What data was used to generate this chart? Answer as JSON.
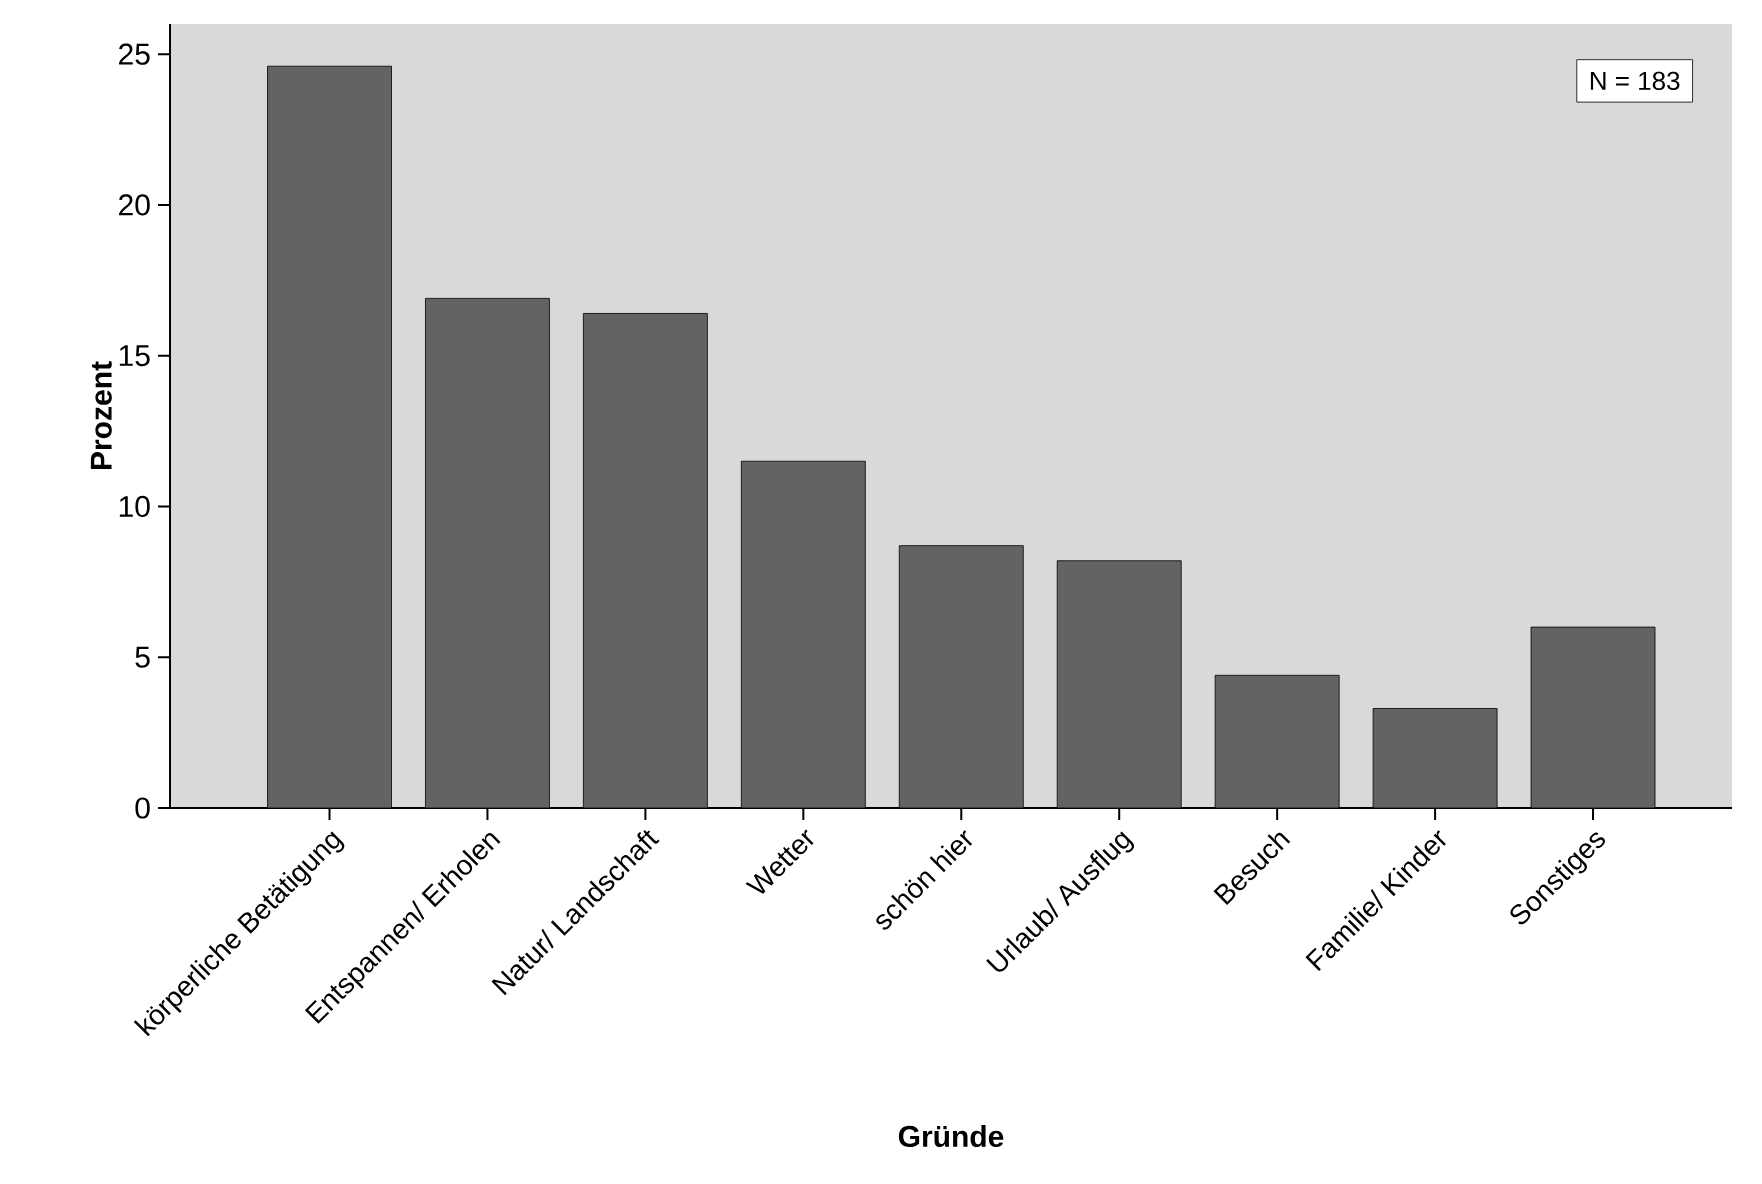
{
  "chart_data": {
    "type": "bar",
    "xlabel": "Gründe",
    "ylabel": "Prozent",
    "categories": [
      "körperliche Betätigung",
      "Entspannen/ Erholen",
      "Natur/ Landschaft",
      "Wetter",
      "schön hier",
      "Urlaub/ Ausflug",
      "Besuch",
      "Familie/ Kinder",
      "Sonstiges"
    ],
    "values": [
      24.6,
      16.9,
      16.4,
      11.5,
      8.7,
      8.2,
      4.4,
      3.3,
      6.0
    ],
    "color": "#636363",
    "ylim": [
      0,
      26
    ],
    "yticks": [
      0,
      5,
      10,
      15,
      20,
      25
    ],
    "grid": false,
    "annotations": [
      "N = 183"
    ]
  }
}
